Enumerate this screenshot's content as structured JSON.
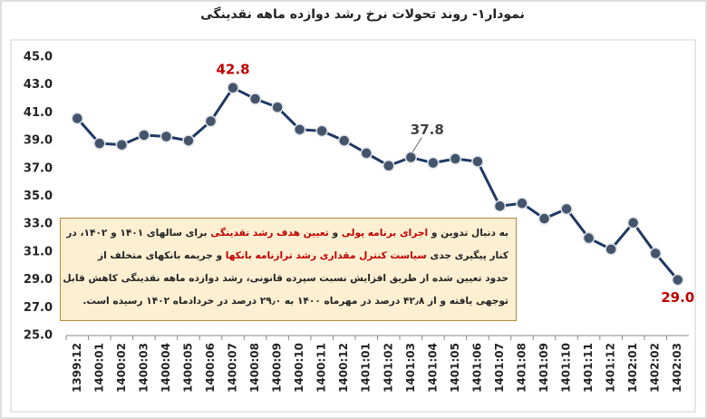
{
  "chart_data": {
    "type": "line",
    "title": "نمودار۱- روند تحولات نرخ رشد دوازده ماهه نقدینگی",
    "categories": [
      "1399:12",
      "1400:01",
      "1400:02",
      "1400:03",
      "1400:04",
      "1400:05",
      "1400:06",
      "1400:07",
      "1400:08",
      "1400:09",
      "1400:10",
      "1400:11",
      "1400:12",
      "1401:01",
      "1401:02",
      "1401:03",
      "1401:04",
      "1401:05",
      "1401:06",
      "1401:07",
      "1401:08",
      "1401:09",
      "1401:10",
      "1401:11",
      "1401:12",
      "1402:01",
      "1402:02",
      "1402:03"
    ],
    "values": [
      40.6,
      38.8,
      38.7,
      39.4,
      39.3,
      39.0,
      40.4,
      42.8,
      42.0,
      41.4,
      39.8,
      39.7,
      39.0,
      38.1,
      37.2,
      37.8,
      37.4,
      37.7,
      37.5,
      34.3,
      34.5,
      33.4,
      34.1,
      32.0,
      31.2,
      33.1,
      30.9,
      29.0
    ],
    "value_labels": [
      null,
      null,
      null,
      null,
      null,
      null,
      null,
      "42.8",
      null,
      null,
      null,
      null,
      null,
      null,
      null,
      "37.8",
      null,
      null,
      null,
      null,
      null,
      null,
      null,
      null,
      null,
      null,
      null,
      "29.0"
    ],
    "value_label_colors": [
      null,
      null,
      null,
      null,
      null,
      null,
      null,
      "#c00000",
      null,
      null,
      null,
      null,
      null,
      null,
      null,
      "#404040",
      null,
      null,
      null,
      null,
      null,
      null,
      null,
      null,
      null,
      null,
      null,
      "#c00000"
    ],
    "color": "#1f3864",
    "marker_color": "#44546a",
    "ylim": [
      25,
      45
    ],
    "yticks": [
      {
        "value": 25,
        "label": "25.0"
      },
      {
        "value": 27,
        "label": "27.0"
      },
      {
        "value": 29,
        "label": "29.0"
      },
      {
        "value": 31,
        "label": "31.0"
      },
      {
        "value": 33,
        "label": "33.0"
      },
      {
        "value": 35,
        "label": "35.0"
      },
      {
        "value": 37,
        "label": "37.0"
      },
      {
        "value": 39,
        "label": "39.0"
      },
      {
        "value": 41,
        "label": "41.0"
      },
      {
        "value": 43,
        "label": "43.0"
      },
      {
        "value": 45,
        "label": "45.0"
      }
    ],
    "grid": false,
    "annotation": [
      [
        {
          "text": "به دنبال تدوین و ",
          "red": false
        },
        {
          "text": "اجرای برنامه پولی",
          "red": true
        },
        {
          "text": " و ",
          "red": false
        },
        {
          "text": "تعیین هدف رشد نقدینگی",
          "red": true
        },
        {
          "text": " برای سالهای ۱۴۰۱ و ۱۴۰۲، در",
          "red": false
        }
      ],
      [
        {
          "text": "کنار پیگیری جدی ",
          "red": false
        },
        {
          "text": "سیاست کنترل مقداری رشد ترازنامه بانکها",
          "red": true
        },
        {
          "text": " و جریمه بانکهای متخلف از",
          "red": false
        }
      ],
      [
        {
          "text": "حدود تعیین شده از طریق افزایش نسبت سپرده قانونی، رشد دوازده ماهه نقدینگی کاهش قابل",
          "red": false
        }
      ],
      [
        {
          "text": "توجهی یافته و از ۴۲٫۸ درصد در مهرماه ۱۴۰۰ به ۲۹٫۰ درصد در خردادماه ۱۴۰۲ رسیده است.",
          "red": false
        }
      ]
    ]
  }
}
